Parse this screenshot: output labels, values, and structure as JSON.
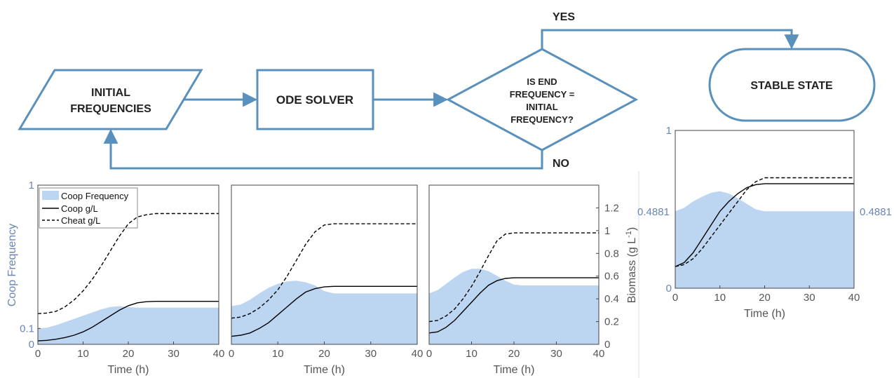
{
  "flowchart": {
    "initial": [
      "INITIAL",
      "FREQUENCIES"
    ],
    "solver": "ODE SOLVER",
    "decision": [
      "IS END",
      "FREQUENCY =",
      "INITIAL",
      "FREQUENCY?"
    ],
    "yes": "YES",
    "no": "NO",
    "stable": "STABLE STATE",
    "colors": {
      "stroke": "#5a91bc",
      "text": "#222222"
    }
  },
  "colors": {
    "fill": "#bcd5f1",
    "axis_left": "#6a86b6",
    "axis_text": "#555555",
    "coop": "#000000",
    "cheat": "#000000"
  },
  "chart_data": [
    {
      "type": "area",
      "x": [
        0,
        2,
        4,
        6,
        8,
        10,
        12,
        14,
        16,
        18,
        20,
        22,
        24,
        26,
        28,
        30,
        32,
        34,
        36,
        38,
        40
      ],
      "series": [
        {
          "name": "Coop Frequency",
          "values": [
            0.1,
            0.105,
            0.12,
            0.14,
            0.16,
            0.18,
            0.2,
            0.22,
            0.235,
            0.24,
            0.235,
            0.23,
            0.23,
            0.23,
            0.23,
            0.23,
            0.23,
            0.23,
            0.23,
            0.23,
            0.23
          ]
        },
        {
          "name": "Coop g/L",
          "values": [
            0.03,
            0.035,
            0.045,
            0.06,
            0.08,
            0.11,
            0.15,
            0.2,
            0.25,
            0.3,
            0.34,
            0.365,
            0.375,
            0.378,
            0.378,
            0.378,
            0.378,
            0.378,
            0.378,
            0.378,
            0.378
          ]
        },
        {
          "name": "Cheat g/L",
          "values": [
            0.27,
            0.275,
            0.29,
            0.33,
            0.39,
            0.47,
            0.57,
            0.69,
            0.82,
            0.95,
            1.06,
            1.12,
            1.14,
            1.15,
            1.15,
            1.15,
            1.15,
            1.15,
            1.15,
            1.15,
            1.15
          ]
        }
      ],
      "xlabel": "Time (h)",
      "ylabel": "Coop Frequency",
      "y2label": "Biomass (g L",
      "xlim": [
        0,
        40
      ],
      "ylim": [
        0,
        1
      ],
      "y2lim": [
        0,
        1.4
      ],
      "xticks": [
        "0",
        "10",
        "20",
        "30",
        "40"
      ],
      "yticks": [
        "0",
        "0.1",
        "1"
      ],
      "legend": "top-left",
      "grid": false
    },
    {
      "type": "area",
      "x": [
        0,
        2,
        4,
        6,
        8,
        10,
        12,
        14,
        16,
        18,
        20,
        22,
        24,
        26,
        28,
        30,
        32,
        34,
        36,
        38,
        40
      ],
      "series": [
        {
          "name": "Coop Frequency",
          "values": [
            0.24,
            0.25,
            0.28,
            0.32,
            0.355,
            0.38,
            0.395,
            0.4,
            0.39,
            0.37,
            0.335,
            0.32,
            0.32,
            0.32,
            0.32,
            0.32,
            0.32,
            0.32,
            0.32,
            0.32,
            0.32
          ]
        },
        {
          "name": "Coop g/L",
          "values": [
            0.07,
            0.08,
            0.1,
            0.14,
            0.19,
            0.26,
            0.33,
            0.4,
            0.46,
            0.49,
            0.505,
            0.51,
            0.51,
            0.51,
            0.51,
            0.51,
            0.51,
            0.51,
            0.51,
            0.51,
            0.51
          ]
        },
        {
          "name": "Cheat g/L",
          "values": [
            0.23,
            0.24,
            0.27,
            0.32,
            0.39,
            0.48,
            0.6,
            0.74,
            0.88,
            0.99,
            1.05,
            1.06,
            1.06,
            1.06,
            1.06,
            1.06,
            1.06,
            1.06,
            1.06,
            1.06,
            1.06
          ]
        }
      ],
      "xlabel": "Time (h)",
      "xlim": [
        0,
        40
      ],
      "ylim": [
        0,
        1
      ],
      "y2lim": [
        0,
        1.4
      ],
      "xticks": [
        "0",
        "10",
        "20",
        "30",
        "40"
      ]
    },
    {
      "type": "area",
      "x": [
        0,
        2,
        4,
        6,
        8,
        10,
        12,
        14,
        16,
        18,
        20,
        22,
        24,
        26,
        28,
        30,
        32,
        34,
        36,
        38,
        40
      ],
      "series": [
        {
          "name": "Coop Frequency",
          "values": [
            0.32,
            0.34,
            0.38,
            0.42,
            0.455,
            0.475,
            0.475,
            0.46,
            0.43,
            0.4,
            0.375,
            0.37,
            0.37,
            0.37,
            0.37,
            0.37,
            0.37,
            0.37,
            0.37,
            0.37,
            0.37
          ]
        },
        {
          "name": "Coop g/L",
          "values": [
            0.1,
            0.11,
            0.15,
            0.21,
            0.29,
            0.37,
            0.45,
            0.52,
            0.56,
            0.58,
            0.585,
            0.585,
            0.585,
            0.585,
            0.585,
            0.585,
            0.585,
            0.585,
            0.585,
            0.585,
            0.585
          ]
        },
        {
          "name": "Cheat g/L",
          "values": [
            0.2,
            0.21,
            0.25,
            0.31,
            0.4,
            0.51,
            0.64,
            0.78,
            0.91,
            0.97,
            0.98,
            0.98,
            0.98,
            0.98,
            0.98,
            0.98,
            0.98,
            0.98,
            0.98,
            0.98,
            0.98
          ]
        }
      ],
      "xlabel": "Time (h)",
      "y2label": "Biomass (g L",
      "y2sup": "-1",
      "y2close": ")",
      "xlim": [
        0,
        40
      ],
      "ylim": [
        0,
        1
      ],
      "y2lim": [
        0,
        1.4
      ],
      "xticks": [
        "0",
        "10",
        "20",
        "30",
        "40"
      ],
      "y2ticks": [
        "0",
        "0.2",
        "0.4",
        "0.6",
        "0.8",
        "1",
        "1.2"
      ]
    },
    {
      "type": "area",
      "x": [
        0,
        2,
        4,
        6,
        8,
        10,
        12,
        14,
        16,
        18,
        20,
        22,
        24,
        26,
        28,
        30,
        32,
        34,
        36,
        38,
        40
      ],
      "series": [
        {
          "name": "Coop Frequency",
          "values": [
            0.4881,
            0.51,
            0.55,
            0.58,
            0.605,
            0.615,
            0.6,
            0.57,
            0.535,
            0.5,
            0.4881,
            0.4881,
            0.4881,
            0.4881,
            0.4881,
            0.4881,
            0.4881,
            0.4881,
            0.4881,
            0.4881,
            0.4881
          ]
        },
        {
          "name": "Coop g/L",
          "values": [
            0.11,
            0.13,
            0.18,
            0.25,
            0.32,
            0.39,
            0.44,
            0.48,
            0.51,
            0.525,
            0.53,
            0.53,
            0.53,
            0.53,
            0.53,
            0.53,
            0.53,
            0.53,
            0.53,
            0.53,
            0.53
          ]
        },
        {
          "name": "Cheat g/L",
          "values": [
            0.11,
            0.12,
            0.15,
            0.2,
            0.26,
            0.32,
            0.38,
            0.44,
            0.5,
            0.54,
            0.56,
            0.56,
            0.56,
            0.56,
            0.56,
            0.56,
            0.56,
            0.56,
            0.56,
            0.56,
            0.56
          ]
        }
      ],
      "xlabel": "Time (h)",
      "xlim": [
        0,
        40
      ],
      "ylim": [
        0,
        1
      ],
      "y2lim": [
        0,
        0.8
      ],
      "xticks": [
        "0",
        "10",
        "20",
        "30",
        "40"
      ],
      "yticks": [
        "0",
        "1"
      ],
      "annotation_left": "0.4881",
      "annotation_right": "0.4881"
    }
  ]
}
